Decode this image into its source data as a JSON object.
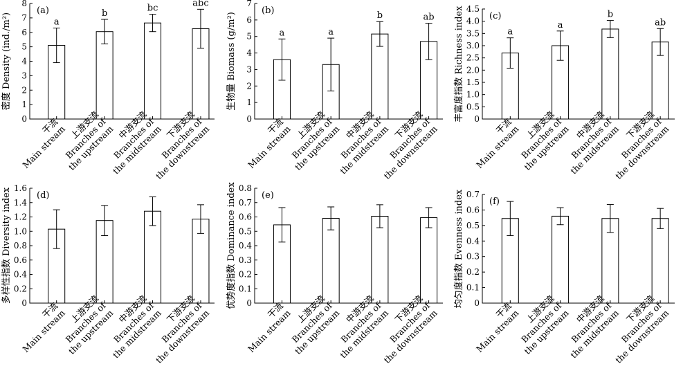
{
  "categories": [
    [
      "干流",
      "Main stream"
    ],
    [
      "上游支流",
      "Branches of",
      "the upstream"
    ],
    [
      "中游支流",
      "Branches of",
      "the midstream"
    ],
    [
      "下游支流",
      "Branches of",
      "the downstream"
    ]
  ],
  "chart_data": [
    {
      "type": "bar",
      "panel_label": "(a)",
      "ylabel": "密度 Density (ind./m²)",
      "ylim": [
        0,
        8
      ],
      "yticks": [
        "0",
        "1",
        "2",
        "3",
        "4",
        "5",
        "6",
        "7",
        "8"
      ],
      "values": [
        5.1,
        6.05,
        6.65,
        6.25
      ],
      "errors": [
        1.2,
        0.85,
        0.6,
        1.35
      ],
      "significance": [
        "a",
        "b",
        "bc",
        "abc"
      ]
    },
    {
      "type": "bar",
      "panel_label": "(b)",
      "ylabel": "生物量 Biomass (g/m²)",
      "ylim": [
        0,
        7
      ],
      "yticks": [
        "0",
        "1",
        "2",
        "3",
        "4",
        "5",
        "6",
        "7"
      ],
      "values": [
        3.6,
        3.3,
        5.15,
        4.7
      ],
      "errors": [
        1.25,
        1.6,
        0.75,
        1.1
      ],
      "significance": [
        "a",
        "a",
        "b",
        "ab"
      ]
    },
    {
      "type": "bar",
      "panel_label": "(c)",
      "ylabel": "丰富度指数 Richness index",
      "ylim": [
        0,
        4.5
      ],
      "yticks": [
        "0",
        "0.5",
        "1.0",
        "1.5",
        "2.0",
        "2.5",
        "3.0",
        "3.5",
        "4.0",
        "4.5"
      ],
      "values": [
        2.7,
        3.0,
        3.68,
        3.15
      ],
      "errors": [
        0.62,
        0.6,
        0.35,
        0.55
      ],
      "significance": [
        "a",
        "a",
        "b",
        "ab"
      ]
    },
    {
      "type": "bar",
      "panel_label": "(d)",
      "ylabel": "多样性指数 Diversity index",
      "ylim": [
        0,
        1.6
      ],
      "yticks": [
        "0",
        "0.2",
        "0.4",
        "0.6",
        "0.8",
        "1.0",
        "1.2",
        "1.4",
        "1.6"
      ],
      "values": [
        1.03,
        1.15,
        1.28,
        1.17
      ],
      "errors": [
        0.27,
        0.21,
        0.2,
        0.2
      ],
      "significance": [
        "",
        "",
        "",
        ""
      ]
    },
    {
      "type": "bar",
      "panel_label": "(e)",
      "ylabel": "优势度指数 Dominance index",
      "ylim": [
        0,
        0.8
      ],
      "yticks": [
        "0",
        "0.1",
        "0.2",
        "0.3",
        "0.4",
        "0.5",
        "0.6",
        "0.7",
        "0.8"
      ],
      "values": [
        0.545,
        0.59,
        0.605,
        0.595
      ],
      "errors": [
        0.12,
        0.08,
        0.08,
        0.07
      ],
      "significance": [
        "",
        "",
        "",
        ""
      ]
    },
    {
      "type": "bar",
      "panel_label": "(f)",
      "ylabel": "均匀度指数 Evenness index",
      "ylim": [
        0,
        0.7
      ],
      "yticks": [
        "0",
        "0.1",
        "0.2",
        "0.3",
        "0.4",
        "0.5",
        "0.6",
        "0.7"
      ],
      "values": [
        0.545,
        0.56,
        0.545,
        0.545
      ],
      "errors": [
        0.11,
        0.055,
        0.09,
        0.065
      ],
      "significance": [
        "",
        "",
        "",
        ""
      ]
    }
  ]
}
